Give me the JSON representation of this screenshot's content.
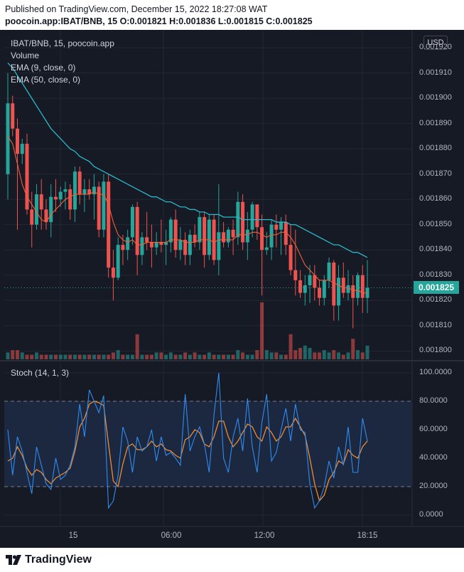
{
  "header": {
    "published": "Published on TradingView.com, December 15, 2022 18:27:08 WAT",
    "ohlc": "poocoin.app:IBAT/BNB, 15  O:0.001821  H:0.001836  L:0.001815  C:0.001825"
  },
  "legend": {
    "symbol": "IBAT/BNB, 15, poocoin.app",
    "volume": "Volume",
    "ema9": "EMA (9, close, 0)",
    "ema50": "EMA (50, close, 0)"
  },
  "stoch_legend": "Stoch (14, 1, 3)",
  "currency_button": "USD",
  "current_price": "0.001825",
  "price_axis": [
    "0.001920",
    "0.001910",
    "0.001900",
    "0.001890",
    "0.001880",
    "0.001870",
    "0.001860",
    "0.001850",
    "0.001840",
    "0.001830",
    "0.001820",
    "0.001810",
    "0.001800"
  ],
  "stoch_axis": [
    "100.0000",
    "80.0000",
    "60.0000",
    "40.0000",
    "20.0000",
    "0.0000"
  ],
  "time_axis": [
    "15",
    "06:00",
    "12:00",
    "18:15"
  ],
  "footer": {
    "brand": "TradingView"
  },
  "colors": {
    "up": "#26a69a",
    "down": "#ef5350",
    "ema9": "#f0603a",
    "ema50": "#2cb8c8",
    "stoch_k": "#2f8cf0",
    "stoch_d": "#f58a2e",
    "background": "#161a25"
  },
  "chart_data": [
    {
      "type": "candlestick",
      "title": "IBAT/BNB, 15, poocoin.app",
      "ylim": [
        0.001797,
        0.001922
      ],
      "candles": [
        [
          0.00187,
          0.00191,
          0.00186,
          0.001898
        ],
        [
          0.001898,
          0.001901,
          0.001885,
          0.001888
        ],
        [
          0.001888,
          0.001892,
          0.001848,
          0.001878
        ],
        [
          0.001878,
          0.001884,
          0.001874,
          0.001882
        ],
        [
          0.001882,
          0.001886,
          0.001854,
          0.001856
        ],
        [
          0.001856,
          0.001863,
          0.001841,
          0.00185
        ],
        [
          0.00185,
          0.001866,
          0.001848,
          0.001862
        ],
        [
          0.001862,
          0.001868,
          0.001848,
          0.001856
        ],
        [
          0.001856,
          0.00186,
          0.001848,
          0.001851
        ],
        [
          0.001851,
          0.001866,
          0.001845,
          0.001861
        ],
        [
          0.001861,
          0.001868,
          0.001855,
          0.00186
        ],
        [
          0.00186,
          0.001865,
          0.001857,
          0.001863
        ],
        [
          0.001863,
          0.001867,
          0.001856,
          0.001864
        ],
        [
          0.001864,
          0.001866,
          0.001852,
          0.001856
        ],
        [
          0.001856,
          0.001873,
          0.001851,
          0.001871
        ],
        [
          0.001871,
          0.001873,
          0.001858,
          0.001862
        ],
        [
          0.001862,
          0.001868,
          0.001855,
          0.001864
        ],
        [
          0.001864,
          0.001868,
          0.00186,
          0.001862
        ],
        [
          0.001862,
          0.00187,
          0.001852,
          0.001865
        ],
        [
          0.001865,
          0.001867,
          0.001845,
          0.001848
        ],
        [
          0.001848,
          0.00187,
          0.001845,
          0.001867
        ],
        [
          0.001867,
          0.00187,
          0.001829,
          0.001833
        ],
        [
          0.001833,
          0.00184,
          0.00182,
          0.001829
        ],
        [
          0.001829,
          0.001845,
          0.001828,
          0.001842
        ],
        [
          0.001842,
          0.001846,
          0.001834,
          0.00184
        ],
        [
          0.00184,
          0.001848,
          0.001836,
          0.001845
        ],
        [
          0.001845,
          0.001858,
          0.001842,
          0.001857
        ],
        [
          0.001857,
          0.001859,
          0.00183,
          0.001838
        ],
        [
          0.001838,
          0.001847,
          0.001834,
          0.001845
        ],
        [
          0.001845,
          0.001855,
          0.00184,
          0.001843
        ],
        [
          0.001843,
          0.00185,
          0.001833,
          0.001841
        ],
        [
          0.001841,
          0.001847,
          0.001838,
          0.001843
        ],
        [
          0.001843,
          0.001852,
          0.001839,
          0.001842
        ],
        [
          0.001842,
          0.001848,
          0.001834,
          0.001843
        ],
        [
          0.001843,
          0.001853,
          0.001839,
          0.001852
        ],
        [
          0.001852,
          0.001856,
          0.001837,
          0.00184
        ],
        [
          0.00184,
          0.001849,
          0.001836,
          0.001844
        ],
        [
          0.001844,
          0.001847,
          0.001834,
          0.001838
        ],
        [
          0.001838,
          0.001848,
          0.001834,
          0.001846
        ],
        [
          0.001846,
          0.00185,
          0.001841,
          0.001843
        ],
        [
          0.001843,
          0.001855,
          0.00184,
          0.001853
        ],
        [
          0.001853,
          0.001855,
          0.001833,
          0.001838
        ],
        [
          0.001838,
          0.001854,
          0.001836,
          0.001852
        ],
        [
          0.001852,
          0.001854,
          0.001834,
          0.001836
        ],
        [
          0.001836,
          0.001866,
          0.00183,
          0.001847
        ],
        [
          0.001847,
          0.001851,
          0.001841,
          0.001843
        ],
        [
          0.001843,
          0.001849,
          0.001841,
          0.001848
        ],
        [
          0.001848,
          0.001852,
          0.001838,
          0.001845
        ],
        [
          0.001845,
          0.001863,
          0.001842,
          0.001859
        ],
        [
          0.001859,
          0.001862,
          0.00184,
          0.001843
        ],
        [
          0.001843,
          0.001855,
          0.001836,
          0.001848
        ],
        [
          0.001848,
          0.001859,
          0.001845,
          0.001858
        ],
        [
          0.001858,
          0.001858,
          0.001844,
          0.001849
        ],
        [
          0.001849,
          0.001854,
          0.001822,
          0.00184
        ],
        [
          0.00184,
          0.001847,
          0.001838,
          0.001841
        ],
        [
          0.001841,
          0.001852,
          0.001836,
          0.00185
        ],
        [
          0.00185,
          0.001854,
          0.001841,
          0.001848
        ],
        [
          0.001848,
          0.001853,
          0.001838,
          0.001851
        ],
        [
          0.001851,
          0.001854,
          0.001838,
          0.001842
        ],
        [
          0.001842,
          0.00185,
          0.00183,
          0.001832
        ],
        [
          0.001832,
          0.001848,
          0.001822,
          0.001828
        ],
        [
          0.001828,
          0.001832,
          0.001821,
          0.001823
        ],
        [
          0.001823,
          0.00183,
          0.001818,
          0.001826
        ],
        [
          0.001826,
          0.001834,
          0.001819,
          0.00183
        ],
        [
          0.00183,
          0.001834,
          0.00182,
          0.001825
        ],
        [
          0.001825,
          0.001828,
          0.001818,
          0.001821
        ],
        [
          0.001821,
          0.00183,
          0.001818,
          0.001828
        ],
        [
          0.001828,
          0.001837,
          0.001825,
          0.001835
        ],
        [
          0.001835,
          0.001836,
          0.001812,
          0.001818
        ],
        [
          0.001818,
          0.001834,
          0.001812,
          0.001829
        ],
        [
          0.001829,
          0.001835,
          0.001821,
          0.001823
        ],
        [
          0.001823,
          0.001832,
          0.00182,
          0.001826
        ],
        [
          0.001826,
          0.00183,
          0.001809,
          0.001821
        ],
        [
          0.001821,
          0.001831,
          0.001818,
          0.00183
        ],
        [
          0.00183,
          0.001834,
          0.001815,
          0.001821
        ],
        [
          0.001821,
          0.001836,
          0.001815,
          0.001825
        ]
      ],
      "volume": [
        3,
        4,
        4,
        3,
        2,
        2,
        3,
        2,
        2,
        2,
        2,
        2,
        2,
        2,
        2,
        2,
        2,
        2,
        2,
        2,
        2,
        2,
        3,
        4,
        2,
        2,
        2,
        11,
        2,
        2,
        2,
        3,
        3,
        2,
        3,
        2,
        2,
        3,
        2,
        3,
        2,
        2,
        3,
        2,
        2,
        2,
        2,
        2,
        4,
        3,
        2,
        2,
        4,
        25,
        4,
        3,
        3,
        2,
        2,
        11,
        4,
        5,
        6,
        5,
        3,
        3,
        4,
        3,
        4,
        3,
        2,
        3,
        9,
        4,
        3,
        6
      ],
      "ema9": [
        0.001885,
        0.001882,
        0.001874,
        0.001866,
        0.001861,
        0.001858,
        0.001855,
        0.001852,
        0.001851,
        0.001854,
        0.001856,
        0.001858,
        0.00186,
        0.001861,
        0.001862,
        0.001862,
        0.001862,
        0.001862,
        0.001863,
        0.001862,
        0.001862,
        0.001858,
        0.001851,
        0.001846,
        0.001844,
        0.001843,
        0.001844,
        0.001842,
        0.001842,
        0.001843,
        0.001843,
        0.001843,
        0.001843,
        0.001843,
        0.001844,
        0.001844,
        0.001844,
        0.001843,
        0.001843,
        0.001843,
        0.001844,
        0.001844,
        0.001844,
        0.001843,
        0.001844,
        0.001844,
        0.001844,
        0.001844,
        0.001846,
        0.001846,
        0.001846,
        0.001847,
        0.001847,
        0.001846,
        0.001845,
        0.001846,
        0.001846,
        0.001847,
        0.001847,
        0.001845,
        0.001842,
        0.001838,
        0.001834,
        0.001832,
        0.00183,
        0.001828,
        0.001828,
        0.001828,
        0.001827,
        0.001826,
        0.001825,
        0.001825,
        0.001824,
        0.001824,
        0.001823,
        0.001823
      ],
      "ema50": [
        0.001914,
        0.001912,
        0.001909,
        0.001906,
        0.001903,
        0.0019,
        0.001897,
        0.001894,
        0.001891,
        0.001888,
        0.001886,
        0.001884,
        0.001882,
        0.00188,
        0.001879,
        0.001877,
        0.001876,
        0.001875,
        0.001873,
        0.001872,
        0.001871,
        0.00187,
        0.001869,
        0.001868,
        0.001867,
        0.001866,
        0.001865,
        0.001864,
        0.001863,
        0.001862,
        0.001861,
        0.001861,
        0.00186,
        0.001859,
        0.001859,
        0.001858,
        0.001857,
        0.001857,
        0.001856,
        0.001856,
        0.001855,
        0.001855,
        0.001854,
        0.001854,
        0.001854,
        0.001853,
        0.001853,
        0.001853,
        0.001853,
        0.001852,
        0.001852,
        0.001852,
        0.001852,
        0.001852,
        0.001852,
        0.001852,
        0.001851,
        0.001851,
        0.001851,
        0.00185,
        0.00185,
        0.001849,
        0.001848,
        0.001847,
        0.001846,
        0.001845,
        0.001844,
        0.001843,
        0.001842,
        0.001842,
        0.001841,
        0.00184,
        0.001839,
        0.001839,
        0.001838,
        0.001837
      ]
    },
    {
      "type": "line",
      "title": "Stoch (14, 1, 3)",
      "ylim": [
        -8,
        108
      ],
      "bands": [
        20,
        80
      ],
      "series": [
        {
          "name": "%K",
          "values": [
            60,
            28,
            55,
            45,
            30,
            15,
            48,
            35,
            22,
            18,
            40,
            25,
            28,
            35,
            48,
            78,
            55,
            88,
            80,
            72,
            84,
            5,
            10,
            28,
            62,
            52,
            30,
            55,
            45,
            48,
            60,
            38,
            55,
            42,
            44,
            40,
            35,
            85,
            45,
            55,
            62,
            50,
            30,
            70,
            100,
            40,
            30,
            55,
            68,
            45,
            82,
            48,
            30,
            65,
            85,
            38,
            44,
            60,
            75,
            52,
            78,
            60,
            58,
            22,
            5,
            10,
            20,
            38,
            26,
            48,
            35,
            62,
            30,
            30,
            68,
            52
          ]
        },
        {
          "name": "%D",
          "values": [
            38,
            40,
            48,
            42,
            33,
            28,
            32,
            30,
            25,
            22,
            26,
            28,
            30,
            33,
            45,
            62,
            68,
            78,
            80,
            79,
            77,
            50,
            24,
            20,
            36,
            48,
            50,
            46,
            46,
            48,
            52,
            48,
            50,
            46,
            45,
            42,
            40,
            53,
            55,
            60,
            58,
            50,
            48,
            55,
            66,
            66,
            55,
            48,
            52,
            58,
            64,
            62,
            55,
            52,
            62,
            58,
            52,
            55,
            62,
            62,
            68,
            62,
            56,
            40,
            22,
            10,
            14,
            25,
            30,
            38,
            36,
            46,
            42,
            40,
            48,
            52
          ]
        }
      ]
    }
  ]
}
